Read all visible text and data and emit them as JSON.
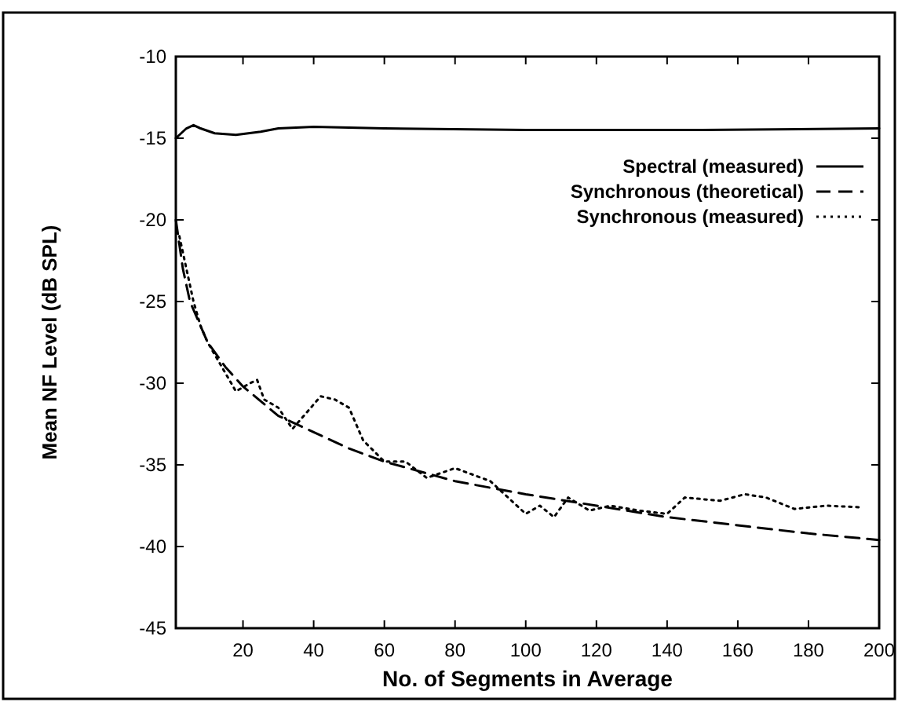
{
  "chart_data": {
    "type": "line",
    "xlabel": "No. of Segments in Average",
    "ylabel": "Mean NF Level (dB SPL)",
    "xlim": [
      1,
      200
    ],
    "ylim": [
      -45,
      -10
    ],
    "xticks": [
      20,
      40,
      60,
      80,
      100,
      120,
      140,
      160,
      180,
      200
    ],
    "yticks": [
      -45,
      -40,
      -35,
      -30,
      -25,
      -20,
      -15,
      -10
    ],
    "grid": false,
    "legend": "top right",
    "series": [
      {
        "name": "Spectral (measured)",
        "color": "#000000",
        "line_style": "solid",
        "x": [
          1,
          4,
          6,
          8,
          12,
          18,
          25,
          30,
          40,
          60,
          100,
          150,
          200
        ],
        "values": [
          -15,
          -14.4,
          -14.2,
          -14.4,
          -14.7,
          -14.8,
          -14.6,
          -14.4,
          -14.3,
          -14.4,
          -14.5,
          -14.5,
          -14.4
        ]
      },
      {
        "name": "Synchronous (theoretical)",
        "color": "#000000",
        "line_style": "dashed",
        "x": [
          1,
          3,
          5,
          10,
          15,
          20,
          30,
          40,
          50,
          60,
          80,
          100,
          120,
          140,
          160,
          180,
          200
        ],
        "values": [
          -20,
          -23,
          -25,
          -27.5,
          -29,
          -30.2,
          -32,
          -33,
          -34,
          -34.8,
          -36,
          -36.8,
          -37.5,
          -38.2,
          -38.7,
          -39.2,
          -39.6
        ]
      },
      {
        "name": "Synchronous (measured)",
        "color": "#000000",
        "line_style": "dotted",
        "x": [
          2,
          4,
          6,
          8,
          10,
          14,
          18,
          22,
          24,
          26,
          30,
          34,
          38,
          42,
          46,
          50,
          54,
          60,
          66,
          72,
          80,
          90,
          100,
          104,
          108,
          112,
          118,
          124,
          132,
          140,
          145,
          155,
          162,
          168,
          176,
          185,
          195
        ],
        "values": [
          -21,
          -23,
          -25,
          -26.5,
          -27.5,
          -29,
          -30.5,
          -30,
          -29.8,
          -31,
          -31.5,
          -32.8,
          -31.8,
          -30.8,
          -31,
          -31.5,
          -33.5,
          -34.8,
          -34.8,
          -35.8,
          -35.2,
          -36,
          -38,
          -37.5,
          -38.2,
          -37,
          -37.8,
          -37.5,
          -37.8,
          -38,
          -37,
          -37.2,
          -36.8,
          -37,
          -37.7,
          -37.5,
          -37.6
        ]
      }
    ]
  }
}
